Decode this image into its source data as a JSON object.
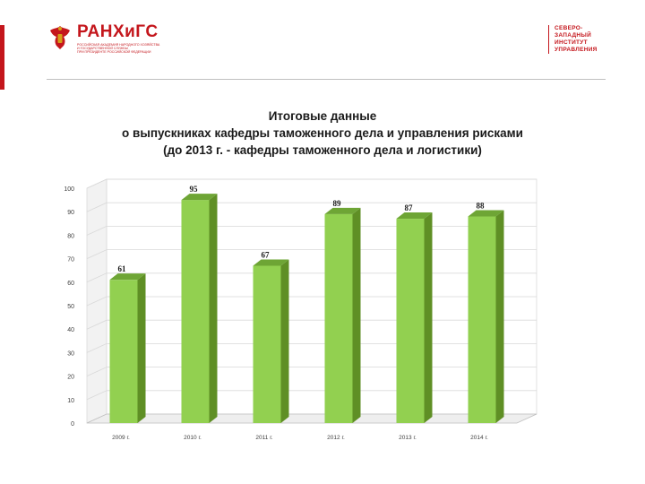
{
  "header": {
    "brand": "РАНХиГС",
    "brand_lines": [
      "РОССИЙСКАЯ АКАДЕМИЯ НАРОДНОГО ХОЗЯЙСТВА",
      "И ГОСУДАРСТВЕННОЙ СЛУЖБЫ",
      "ПРИ ПРЕЗИДЕНТЕ РОССИЙСКОЙ ФЕДЕРАЦИИ"
    ],
    "institute_lines": [
      "СЕВЕРО-",
      "ЗАПАДНЫЙ",
      "ИНСТИТУТ",
      "УПРАВЛЕНИЯ"
    ],
    "accent_color": "#c4161c"
  },
  "chart_data": {
    "type": "bar",
    "title_lines": [
      "Итоговые данные",
      "о выпускниках кафедры таможенного дела и управления рисками",
      "(до 2013 г. - кафедры таможенного дела и логистики)"
    ],
    "categories": [
      "2009 г.",
      "2010 г.",
      "2011 г.",
      "2012 г.",
      "2013 г.",
      "2014 г."
    ],
    "values": [
      61,
      95,
      67,
      89,
      87,
      88
    ],
    "y_ticks": [
      "0",
      "10",
      "20",
      "30",
      "40",
      "50",
      "60",
      "70",
      "80",
      "90",
      "100"
    ],
    "ylim": [
      0,
      100
    ],
    "grid": true,
    "bar_color": "#92d050",
    "bar_side_color": "#5f8f25",
    "bar_top_color": "#6ea535"
  }
}
